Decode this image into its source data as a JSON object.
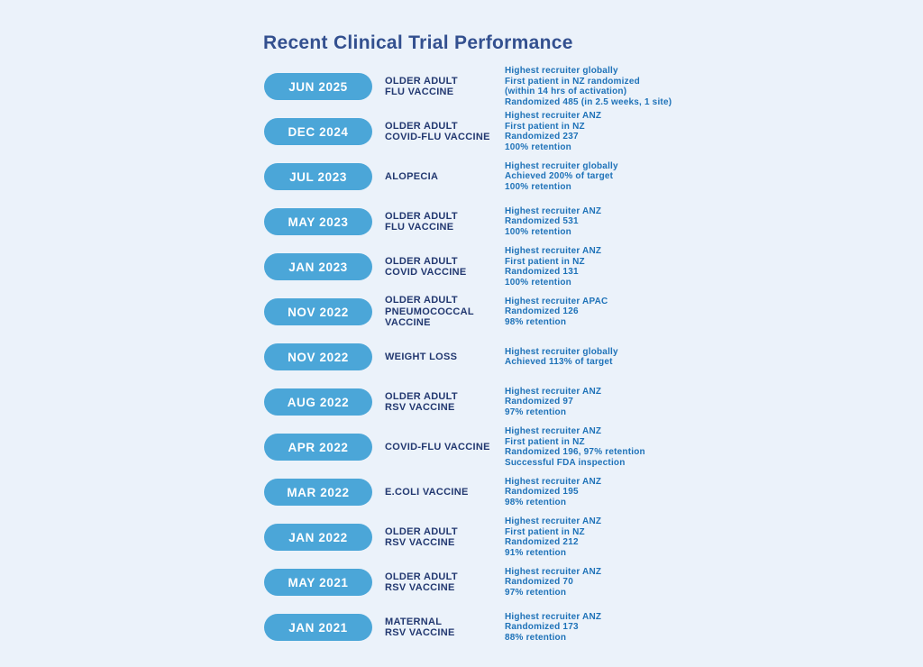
{
  "page": {
    "title": "Recent Clinical Trial Performance",
    "colors": {
      "background": "#EBF2FA",
      "pill": "#4BA6D8",
      "pill_text": "#FFFFFF",
      "title_text": "#33508F",
      "trial_text": "#223870",
      "details_text": "#1E72B8"
    }
  },
  "rows": [
    {
      "date": "JUN 2025",
      "trial": "OLDER ADULT\nFLU VACCINE",
      "details": "Highest recruiter globally\nFirst patient in NZ randomized\n(within 14 hrs of activation)\nRandomized 485 (in 2.5 weeks, 1 site)"
    },
    {
      "date": "DEC 2024",
      "trial": "OLDER ADULT\nCOVID-FLU VACCINE",
      "details": "Highest recruiter ANZ\nFirst patient in NZ\nRandomized 237\n100% retention"
    },
    {
      "date": "JUL 2023",
      "trial": "ALOPECIA",
      "details": "Highest recruiter globally\nAchieved 200% of target\n100% retention"
    },
    {
      "date": "MAY 2023",
      "trial": "OLDER ADULT\nFLU VACCINE",
      "details": "Highest recruiter ANZ\nRandomized 531\n100% retention"
    },
    {
      "date": "JAN 2023",
      "trial": "OLDER ADULT\nCOVID VACCINE",
      "details": "Highest recruiter ANZ\nFirst patient in NZ\nRandomized 131\n100% retention"
    },
    {
      "date": "NOV 2022",
      "trial": "OLDER ADULT\nPNEUMOCOCCAL\nVACCINE",
      "details": "Highest recruiter APAC\nRandomized 126\n98% retention"
    },
    {
      "date": "NOV 2022",
      "trial": "WEIGHT LOSS",
      "details": "Highest recruiter globally\nAchieved 113% of target"
    },
    {
      "date": "AUG 2022",
      "trial": "OLDER ADULT\nRSV VACCINE",
      "details": "Highest recruiter ANZ\nRandomized 97\n97% retention"
    },
    {
      "date": "APR 2022",
      "trial": "COVID-FLU VACCINE",
      "details": "Highest recruiter ANZ\nFirst patient in NZ\nRandomized 196, 97% retention\nSuccessful FDA inspection"
    },
    {
      "date": "MAR 2022",
      "trial": "E.COLI VACCINE",
      "details": "Highest recruiter ANZ\nRandomized 195\n98% retention"
    },
    {
      "date": "JAN 2022",
      "trial": "OLDER ADULT\nRSV VACCINE",
      "details": "Highest recruiter ANZ\nFirst patient in NZ\nRandomized 212\n91% retention"
    },
    {
      "date": "MAY 2021",
      "trial": "OLDER ADULT\nRSV VACCINE",
      "details": "Highest recruiter ANZ\nRandomized 70\n97% retention"
    },
    {
      "date": "JAN 2021",
      "trial": "MATERNAL\nRSV VACCINE",
      "details": "Highest recruiter ANZ\nRandomized 173\n88% retention"
    }
  ]
}
